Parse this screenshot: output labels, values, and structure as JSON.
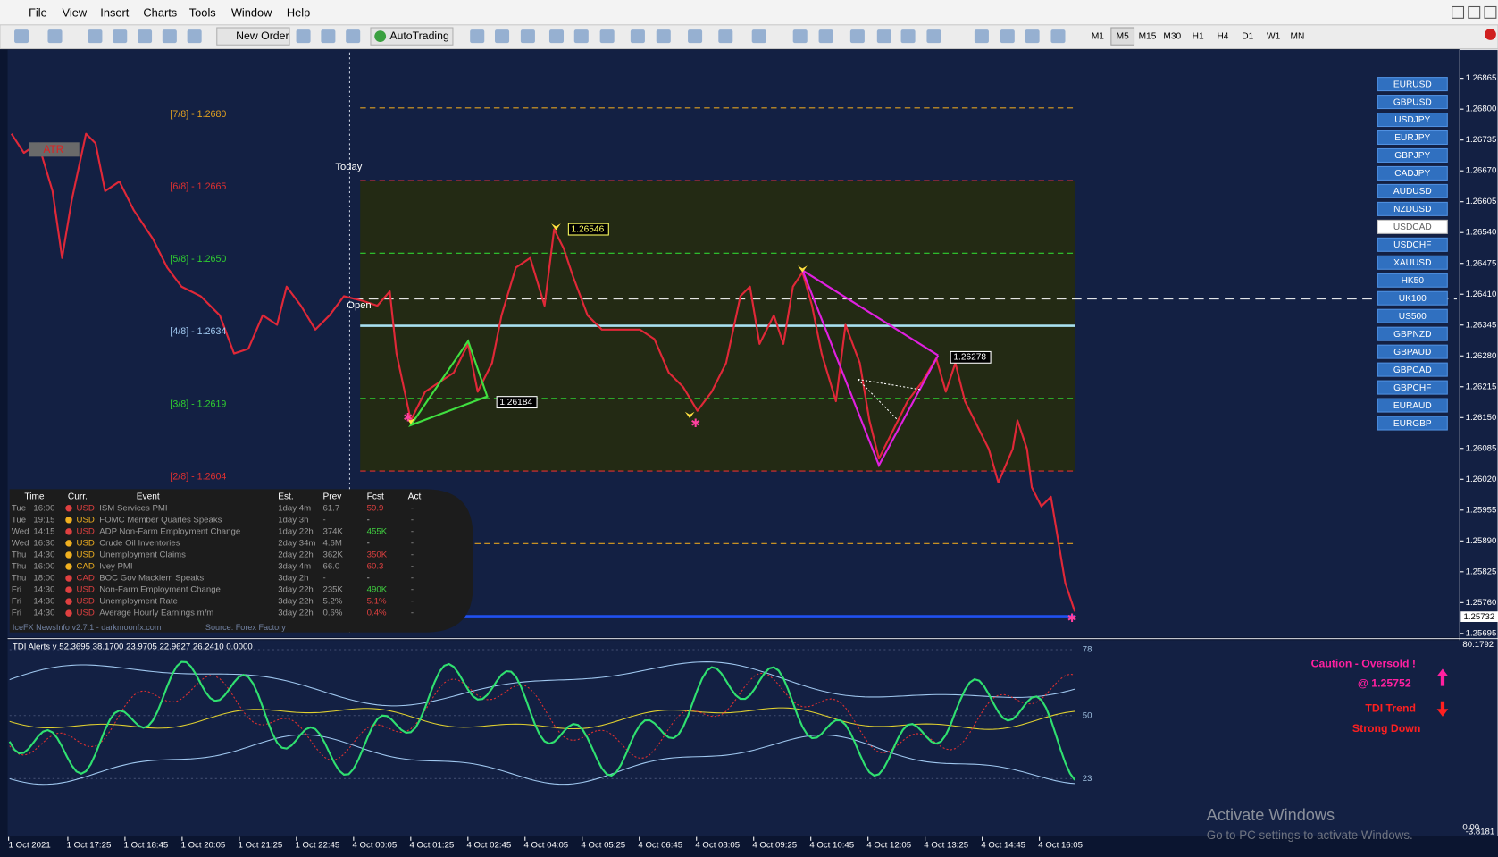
{
  "menu": [
    "File",
    "View",
    "Insert",
    "Charts",
    "Tools",
    "Window",
    "Help"
  ],
  "toolbar": {
    "new_order": "New Order",
    "autotrading": "AutoTrading",
    "timeframes": [
      "M1",
      "M5",
      "M15",
      "M30",
      "H1",
      "H4",
      "D1",
      "W1",
      "MN"
    ]
  },
  "chart": {
    "today": "Today",
    "open": "Open",
    "atr": "ATR",
    "price_axis": [
      "1.26865",
      "1.26800",
      "1.26735",
      "1.26670",
      "1.26605",
      "1.26540",
      "1.26475",
      "1.26410",
      "1.26345",
      "1.26280",
      "1.26215",
      "1.26150",
      "1.26085",
      "1.26020",
      "1.25955",
      "1.25890",
      "1.25825",
      "1.25760",
      "1.25695"
    ],
    "current_price": "1.25732",
    "levels": [
      "[7/8] - 1.2680",
      "[6/8] - 1.2665",
      "[5/8] - 1.2650",
      "[4/8] - 1.2634",
      "[3/8] - 1.2619",
      "[2/8] - 1.2604"
    ],
    "price_tags": [
      "1.26546",
      "1.26184",
      "1.26278"
    ],
    "symbols": [
      "EURUSD",
      "GBPUSD",
      "USDJPY",
      "EURJPY",
      "GBPJPY",
      "CADJPY",
      "AUDUSD",
      "NZDUSD",
      "USDCAD",
      "USDCHF",
      "XAUUSD",
      "HK50",
      "UK100",
      "US500",
      "GBPNZD",
      "GBPAUD",
      "GBPCAD",
      "GBPCHF",
      "EURAUD",
      "EURGBP"
    ]
  },
  "news": {
    "headers": [
      "Time",
      "Curr.",
      "Event",
      "Est.",
      "Prev",
      "Fcst",
      "Act"
    ],
    "rows": [
      [
        "Tue",
        "16:00",
        "USD",
        "ISM Services PMI",
        "1day 4m",
        "61.7",
        "59.9",
        "-"
      ],
      [
        "Tue",
        "19:15",
        "USD",
        "FOMC Member Quarles Speaks",
        "1day 3h",
        "-",
        "-",
        "-"
      ],
      [
        "Wed",
        "14:15",
        "USD",
        "ADP Non-Farm Employment Change",
        "1day 22h",
        "374K",
        "455K",
        "-"
      ],
      [
        "Wed",
        "16:30",
        "USD",
        "Crude Oil Inventories",
        "2day 34m",
        "4.6M",
        "-",
        "-"
      ],
      [
        "Thu",
        "14:30",
        "USD",
        "Unemployment Claims",
        "2day 22h",
        "362K",
        "350K",
        "-"
      ],
      [
        "Thu",
        "16:00",
        "CAD",
        "Ivey PMI",
        "3day 4m",
        "66.0",
        "60.3",
        "-"
      ],
      [
        "Thu",
        "18:00",
        "CAD",
        "BOC Gov Macklem Speaks",
        "3day 2h",
        "-",
        "-",
        "-"
      ],
      [
        "Fri",
        "14:30",
        "USD",
        "Non-Farm Employment Change",
        "3day 22h",
        "235K",
        "490K",
        "-"
      ],
      [
        "Fri",
        "14:30",
        "USD",
        "Unemployment Rate",
        "3day 22h",
        "5.2%",
        "5.1%",
        "-"
      ],
      [
        "Fri",
        "14:30",
        "USD",
        "Average Hourly Earnings m/m",
        "3day 22h",
        "0.6%",
        "0.4%",
        "-"
      ]
    ],
    "footer": [
      "IceFX NewsInfo v2.7.1  -  darkmoonfx.com",
      "Source: Forex Factory"
    ]
  },
  "indicator": {
    "header": "TDI Alerts v 52.3695 38.1700 23.9705 22.9627 26.2410 0.0000",
    "levels": [
      "78",
      "50",
      "23"
    ],
    "axis": [
      "80.1792",
      "0.00",
      "-3.8181"
    ],
    "alerts": [
      "Caution - Oversold !",
      "@ 1.25752",
      "TDI Trend",
      "Strong Down"
    ]
  },
  "time_axis": [
    "1 Oct 2021",
    "1 Oct 17:25",
    "1 Oct 18:45",
    "1 Oct 20:05",
    "1 Oct 21:25",
    "1 Oct 22:45",
    "4 Oct 00:05",
    "4 Oct 01:25",
    "4 Oct 02:45",
    "4 Oct 04:05",
    "4 Oct 05:25",
    "4 Oct 06:45",
    "4 Oct 08:05",
    "4 Oct 09:25",
    "4 Oct 10:45",
    "4 Oct 12:05",
    "4 Oct 13:25",
    "4 Oct 14:45",
    "4 Oct 16:05"
  ],
  "watermark": [
    "Activate Windows",
    "Go to PC settings to activate Windows."
  ]
}
